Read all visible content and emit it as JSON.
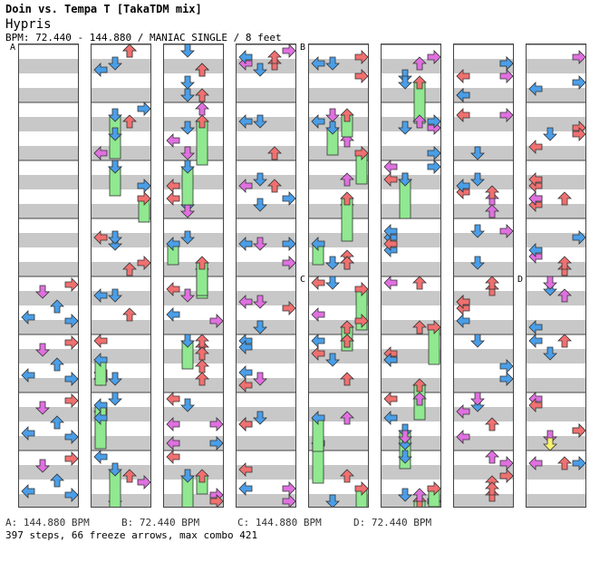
{
  "song": {
    "title": "Doin vs. Tempa T [TakaTDM mix]",
    "artist": "Hypris",
    "meta": "BPM: 72.440 - 144.880 / MANIAC SINGLE / 8 feet"
  },
  "section_markers": [
    {
      "label": "A",
      "column": 0,
      "measure_offset": 0
    },
    {
      "label": "B",
      "column": 4,
      "measure_offset": 0
    },
    {
      "label": "C",
      "column": 4,
      "measure_offset": 4
    },
    {
      "label": "D",
      "column": 7,
      "measure_offset": 4
    }
  ],
  "bpm_legend": [
    {
      "label": "A: 144.880 BPM"
    },
    {
      "label": "B: 72.440 BPM"
    },
    {
      "label": "C: 144.880 BPM"
    },
    {
      "label": "D: 72.440 BPM"
    }
  ],
  "summary": "397 steps, 66 freeze arrows, max combo 421",
  "colors": {
    "stripe_gray": "#c8c8c8",
    "left_down": "#4a9ee8",
    "up_right": "#f07070",
    "eighth": "#e070e0",
    "freeze": "#90e890",
    "highlight": "#f8f070"
  },
  "icons": [
    "left-arrow-icon",
    "down-arrow-icon",
    "up-arrow-icon",
    "right-arrow-icon",
    "freeze-arrow-icon"
  ]
}
